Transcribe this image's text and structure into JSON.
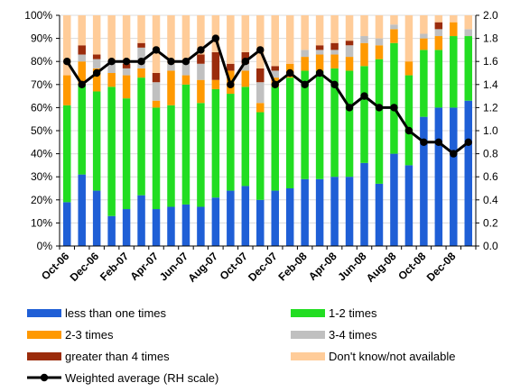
{
  "chart_data": {
    "type": "bar",
    "stacked": true,
    "categories": [
      "Oct-06",
      "Nov-06",
      "Dec-06",
      "Jan-07",
      "Feb-07",
      "Mar-07",
      "Apr-07",
      "May-07",
      "Jun-07",
      "Jul-07",
      "Aug-07",
      "Sep-07",
      "Oct-07",
      "Nov-07",
      "Dec-07",
      "Jan-08",
      "Feb-08",
      "Mar-08",
      "Apr-08",
      "May-08",
      "Jun-08",
      "Jul-08",
      "Aug-08",
      "Sep-08",
      "Oct-08",
      "Nov-08",
      "Dec-08",
      "Jan-09"
    ],
    "x_tick_labels": [
      "Oct-06",
      "Dec-06",
      "Feb-07",
      "Apr-07",
      "Jun-07",
      "Aug-07",
      "Oct-07",
      "Dec-07",
      "Feb-08",
      "Apr-08",
      "Jun-08",
      "Aug-08",
      "Oct-08",
      "Dec-08"
    ],
    "series": [
      {
        "name": "less than one times",
        "color": "#1f5fd6",
        "values": [
          19,
          31,
          24,
          13,
          16,
          22,
          16,
          17,
          18,
          17,
          21,
          24,
          26,
          20,
          24,
          25,
          29,
          29,
          30,
          30,
          36,
          27,
          40,
          35,
          56,
          60,
          60,
          63
        ]
      },
      {
        "name": "1-2 times",
        "color": "#22dd22",
        "values": [
          42,
          39,
          43,
          56,
          48,
          51,
          44,
          44,
          52,
          45,
          47,
          42,
          43,
          38,
          45,
          48,
          47,
          47,
          47,
          46,
          42,
          54,
          48,
          39,
          29,
          25,
          31,
          28
        ]
      },
      {
        "name": "2-3 times",
        "color": "#ff9900",
        "values": [
          13,
          10,
          10,
          6,
          10,
          4,
          3,
          15,
          4,
          10,
          4,
          10,
          7,
          4,
          4,
          6,
          6,
          7,
          6,
          6,
          10,
          6,
          6,
          6,
          5,
          6,
          6,
          0
        ]
      },
      {
        "name": "3-4 times",
        "color": "#c0c0c0",
        "values": [
          0,
          3,
          4,
          5,
          3,
          9,
          8,
          3,
          6,
          7,
          0,
          0,
          3,
          9,
          3,
          0,
          3,
          2,
          2,
          5,
          3,
          3,
          2,
          0,
          2,
          3,
          0,
          3
        ]
      },
      {
        "name": "greater than 4 times",
        "color": "#9b2c0c",
        "values": [
          0,
          4,
          2,
          0,
          2,
          2,
          4,
          0,
          0,
          4,
          12,
          3,
          5,
          6,
          2,
          0,
          0,
          2,
          3,
          2,
          0,
          0,
          0,
          0,
          0,
          3,
          0,
          0
        ]
      },
      {
        "name": "Don't know/not available",
        "color": "#ffcc99",
        "values": [
          26,
          13,
          17,
          20,
          21,
          12,
          25,
          21,
          20,
          17,
          16,
          21,
          16,
          23,
          22,
          21,
          15,
          13,
          12,
          11,
          9,
          10,
          4,
          20,
          8,
          3,
          3,
          6
        ]
      }
    ],
    "line_series": {
      "name": "Weighted average (RH scale)",
      "color": "#000000",
      "axis": "right",
      "x": [
        "Oct-06",
        "Nov-06",
        "Dec-06",
        "Jan-07",
        "Feb-07",
        "Mar-07",
        "Apr-07",
        "May-07",
        "Jun-07",
        "Jul-07",
        "Aug-07",
        "Sep-07",
        "Oct-07",
        "Nov-07",
        "Dec-07",
        "Jan-08",
        "Feb-08",
        "Mar-08",
        "Apr-08",
        "May-08",
        "Jun-08",
        "Jul-08",
        "Aug-08",
        "Sep-08",
        "Oct-08",
        "Nov-08",
        "Dec-08",
        "Jan-09"
      ],
      "values": [
        1.6,
        1.4,
        1.5,
        1.6,
        1.6,
        1.6,
        1.7,
        1.6,
        1.6,
        1.7,
        1.8,
        1.4,
        1.6,
        1.7,
        1.4,
        1.5,
        1.4,
        1.5,
        1.4,
        1.2,
        1.3,
        1.2,
        1.2,
        1.0,
        0.9,
        0.9,
        0.8,
        0.9
      ]
    },
    "y_left": {
      "ticks": [
        "0%",
        "10%",
        "20%",
        "30%",
        "40%",
        "50%",
        "60%",
        "70%",
        "80%",
        "90%",
        "100%"
      ],
      "ylim": [
        0,
        100
      ]
    },
    "y_right": {
      "ticks": [
        "0.0",
        "0.2",
        "0.4",
        "0.6",
        "0.8",
        "1.0",
        "1.2",
        "1.4",
        "1.6",
        "1.8",
        "2.0"
      ],
      "ylim": [
        0,
        2
      ]
    },
    "grid": true,
    "legend_position": "bottom"
  }
}
